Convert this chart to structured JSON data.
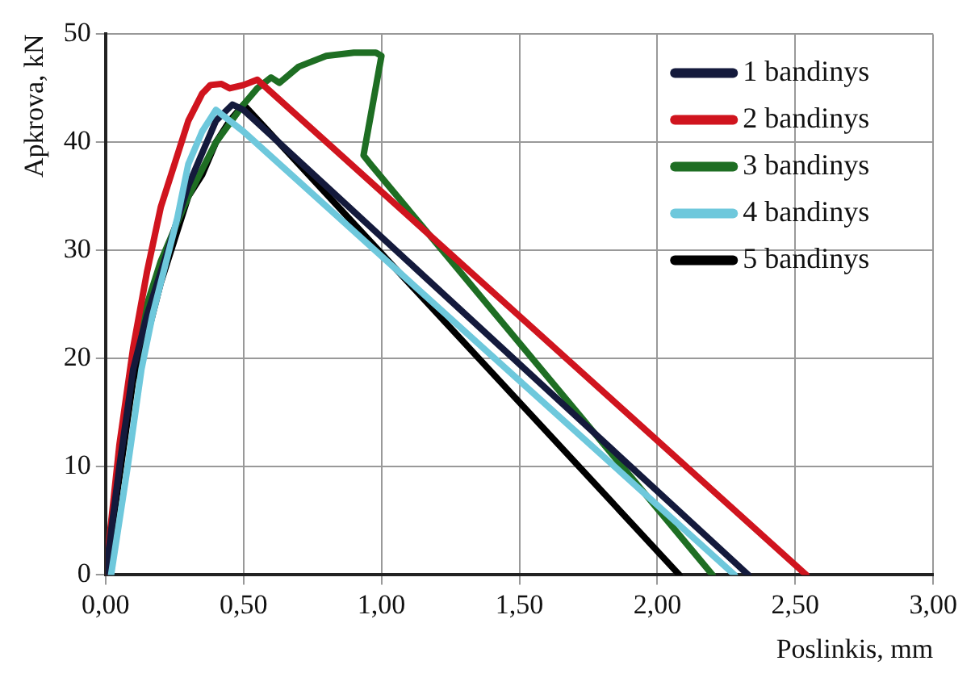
{
  "chart_data": {
    "type": "line",
    "xlabel": "Poslinkis, mm",
    "ylabel": "Apkrova, kN",
    "xlim": [
      0,
      3
    ],
    "ylim": [
      0,
      50
    ],
    "xticks": [
      {
        "value": 0,
        "label": "0,00"
      },
      {
        "value": 0.5,
        "label": "0,50"
      },
      {
        "value": 1,
        "label": "1,00"
      },
      {
        "value": 1.5,
        "label": "1,50"
      },
      {
        "value": 2,
        "label": "2,00"
      },
      {
        "value": 2.5,
        "label": "2,50"
      },
      {
        "value": 3,
        "label": "3,00"
      }
    ],
    "yticks": [
      0,
      10,
      20,
      30,
      40,
      50
    ],
    "grid": true,
    "legend": "top right",
    "marker": "none",
    "line_style": "solid",
    "series": [
      {
        "name": "1 bandinys",
        "color": "#141a3c",
        "x": [
          0,
          0.05,
          0.1,
          0.15,
          0.2,
          0.25,
          0.3,
          0.35,
          0.4,
          0.46,
          0.5,
          2.33
        ],
        "values": [
          0,
          10,
          19,
          24,
          28,
          32,
          36,
          39,
          42,
          43.5,
          43,
          0
        ]
      },
      {
        "name": "2 bandinys",
        "color": "#d0141e",
        "x": [
          0,
          0.05,
          0.1,
          0.15,
          0.2,
          0.25,
          0.3,
          0.35,
          0.38,
          0.42,
          0.45,
          0.5,
          0.55,
          2.54
        ],
        "values": [
          0,
          12,
          21,
          28,
          34,
          38,
          42,
          44.5,
          45.3,
          45.4,
          45,
          45.3,
          45.8,
          0
        ]
      },
      {
        "name": "3 bandinys",
        "color": "#1e6e23",
        "x": [
          0,
          0.05,
          0.1,
          0.15,
          0.2,
          0.3,
          0.4,
          0.5,
          0.55,
          0.6,
          0.63,
          0.7,
          0.8,
          0.9,
          0.98,
          1.0,
          0.935,
          0.96,
          2.2
        ],
        "values": [
          0,
          11,
          20,
          25,
          29,
          35,
          40,
          43.5,
          45,
          46,
          45.5,
          47,
          48,
          48.3,
          48.3,
          48,
          38.8,
          38,
          0
        ]
      },
      {
        "name": "4 bandinys",
        "color": "#6ec8dc",
        "x": [
          0.02,
          0.08,
          0.13,
          0.17,
          0.22,
          0.26,
          0.3,
          0.35,
          0.4,
          0.45,
          0.5,
          2.28
        ],
        "values": [
          0,
          10,
          19,
          24,
          29,
          33,
          38,
          41,
          43,
          42,
          41,
          0
        ]
      },
      {
        "name": "5 bandinys",
        "color": "#000000",
        "x": [
          0,
          0.05,
          0.1,
          0.15,
          0.2,
          0.25,
          0.3,
          0.35,
          0.4,
          0.45,
          0.5,
          2.08
        ],
        "values": [
          0,
          9,
          18,
          22,
          27,
          31,
          35,
          37,
          40,
          42,
          43.5,
          0
        ]
      }
    ]
  }
}
